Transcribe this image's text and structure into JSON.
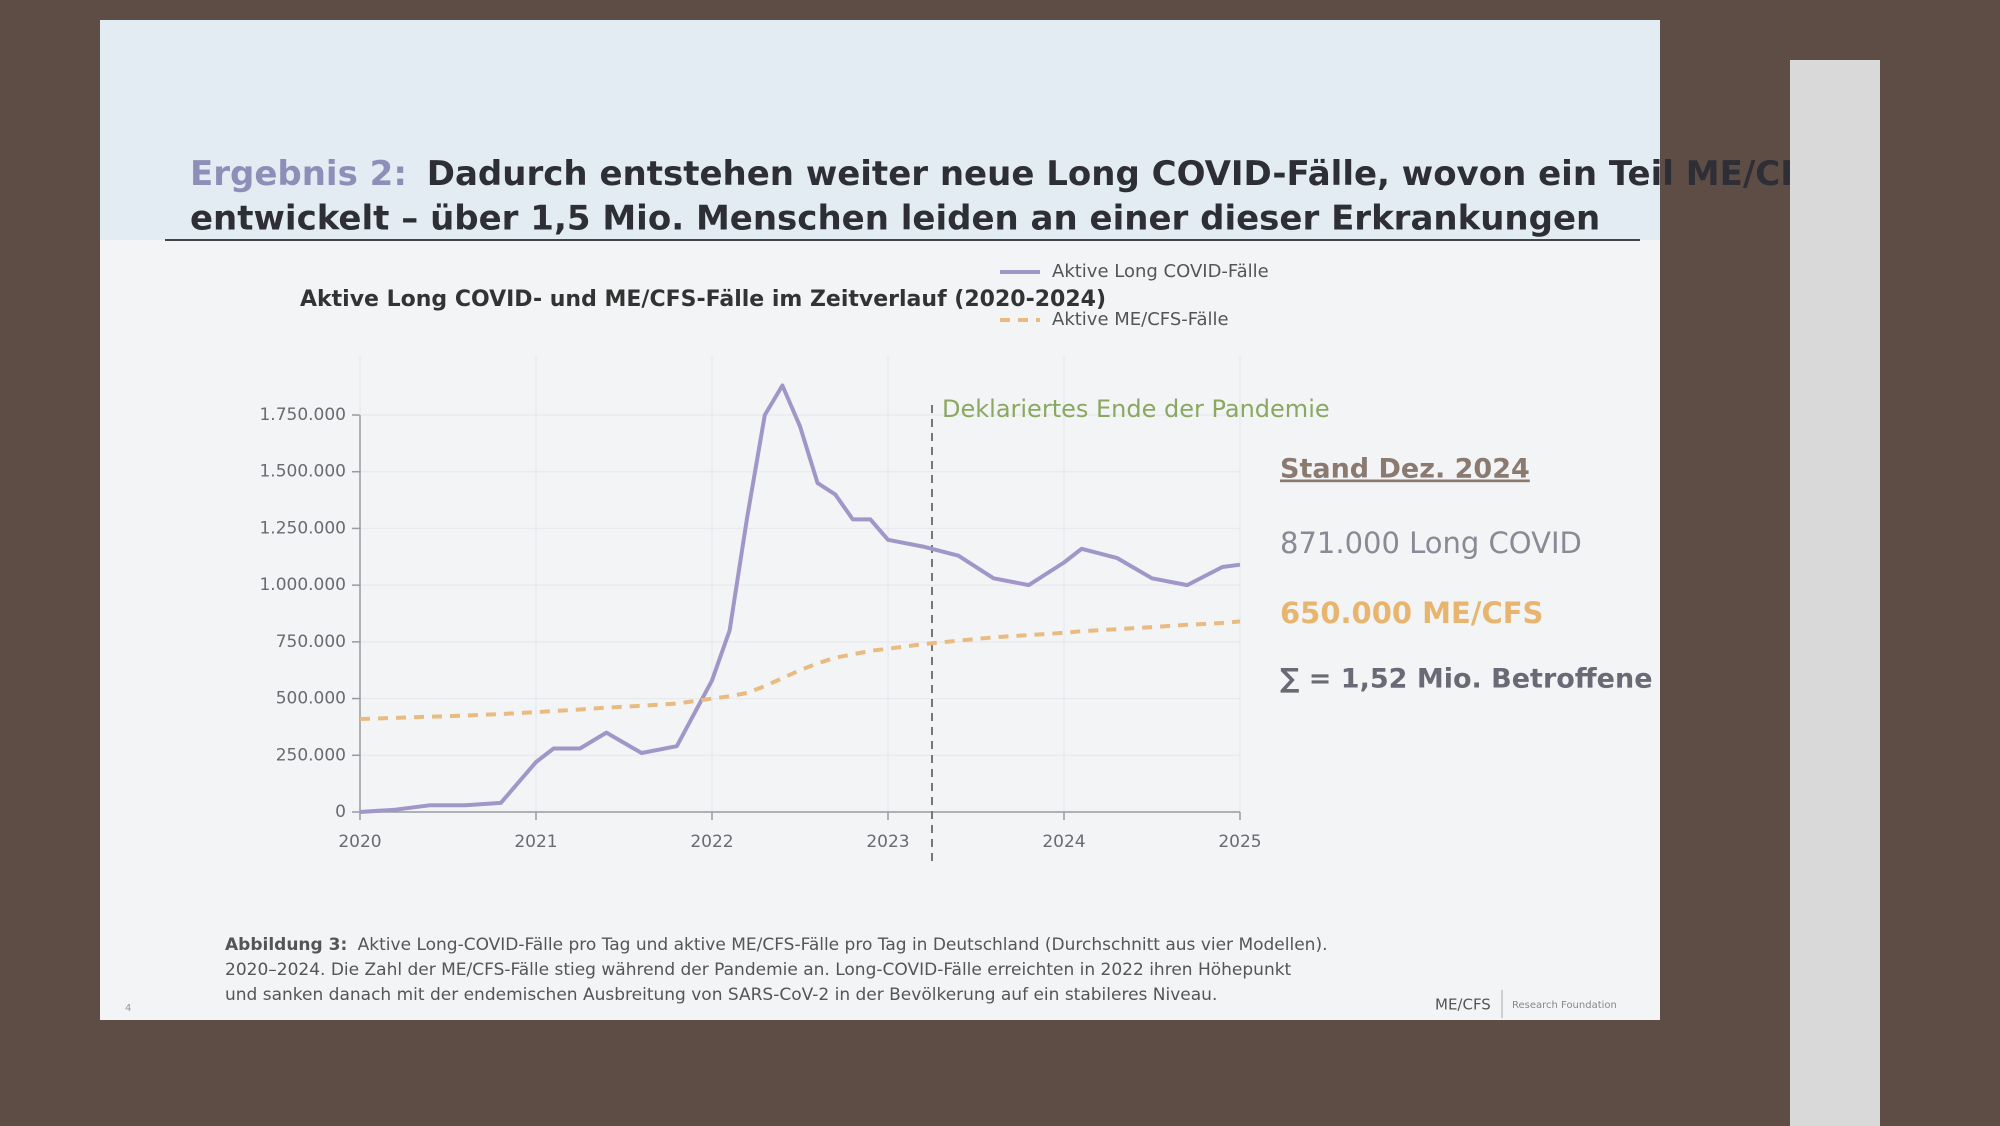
{
  "slide": {
    "header": {
      "label": "Ergebnis 2:",
      "lines": [
        "Dadurch entstehen weiter neue Long COVID-Fälle, wovon ein Teil ME/CFS",
        "entwickelt – über 1,5 Mio. Menschen leiden an einer dieser Erkrankungen"
      ]
    },
    "notes": {
      "title": "Stand Dez. 2024",
      "long_covid": "871.000 Long COVID",
      "mecfs": "650.000 ME/CFS",
      "sum": "∑ = 1,52 Mio. Betroffene"
    },
    "caption": {
      "label": "Abbildung 3:",
      "lines": [
        "Aktive Long-COVID-Fälle pro Tag und aktive ME/CFS-Fälle pro Tag in Deutschland (Durchschnitt aus vier Modellen).",
        "2020–2024. Die Zahl der ME/CFS-Fälle stieg während der Pandemie an. Long-COVID-Fälle erreichten in 2022 ihren Höhepunkt",
        "und sanken danach mit der endemischen Ausbreitung von SARS-CoV-2 in der Bevölkerung auf ein stabileres Niveau."
      ]
    },
    "page_number": "4",
    "logo": "ME/CFS",
    "logo_sub": "Research Foundation"
  },
  "chart_data": {
    "type": "line",
    "title": "Aktive Long COVID- und ME/CFS-Fälle im Zeitverlauf (2020-2024)",
    "x": [
      2020,
      2020.2,
      2020.4,
      2020.6,
      2020.8,
      2021,
      2021.1,
      2021.25,
      2021.4,
      2021.6,
      2021.8,
      2022,
      2022.1,
      2022.2,
      2022.3,
      2022.4,
      2022.5,
      2022.6,
      2022.7,
      2022.8,
      2022.9,
      2023,
      2023.2,
      2023.4,
      2023.6,
      2023.8,
      2024,
      2024.1,
      2024.3,
      2024.5,
      2024.7,
      2024.9,
      2025
    ],
    "series": [
      {
        "name": "Aktive Long COVID-Fälle",
        "color": "#a196c8",
        "style": "solid",
        "values": [
          0,
          10000,
          30000,
          30000,
          40000,
          220000,
          280000,
          280000,
          350000,
          260000,
          290000,
          580000,
          800000,
          1300000,
          1750000,
          1880000,
          1700000,
          1450000,
          1400000,
          1290000,
          1290000,
          1200000,
          1170000,
          1130000,
          1030000,
          1000000,
          1100000,
          1160000,
          1120000,
          1030000,
          1000000,
          1080000,
          1090000
        ]
      },
      {
        "name": "Aktive ME/CFS-Fälle",
        "color": "#e9bb80",
        "style": "dashed",
        "values": [
          410000,
          415000,
          420000,
          425000,
          432000,
          440000,
          445000,
          452000,
          460000,
          468000,
          478000,
          500000,
          510000,
          525000,
          555000,
          590000,
          625000,
          655000,
          680000,
          695000,
          710000,
          720000,
          740000,
          755000,
          770000,
          780000,
          790000,
          797000,
          806000,
          815000,
          825000,
          833000,
          840000
        ]
      }
    ],
    "xlim": [
      2020,
      2025
    ],
    "xticks": [
      2020,
      2021,
      2022,
      2023,
      2024,
      2025
    ],
    "ylim": [
      0,
      1750000
    ],
    "yticks": [
      0,
      {
        "value": 250000,
        "label": "250.000"
      },
      {
        "value": 500000,
        "label": "500.000"
      },
      {
        "value": 750000,
        "label": "750.000"
      },
      {
        "value": 1000000,
        "label": "1.000.000"
      },
      {
        "value": 1250000,
        "label": "1.250.000"
      },
      {
        "value": 1500000,
        "label": "1.500.000"
      },
      {
        "value": 1750000,
        "label": "1.750.000"
      }
    ],
    "grid": true,
    "annotation": {
      "text": "Deklariertes Ende der Pandemie",
      "x": 2023.25,
      "color": "#8aa860"
    }
  }
}
